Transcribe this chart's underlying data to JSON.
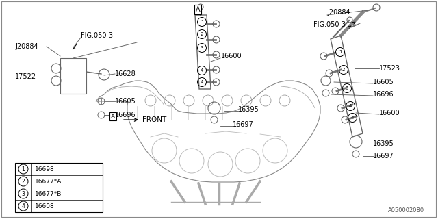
{
  "bg_color": "#ffffff",
  "text_color": "#000000",
  "fig_width": 6.4,
  "fig_height": 3.2,
  "dpi": 100,
  "bottom_right_text": "A050002080",
  "legend_entries": [
    {
      "num": "1",
      "text": "16698"
    },
    {
      "num": "2",
      "text": "16677*A"
    },
    {
      "num": "3",
      "text": "16677*B"
    },
    {
      "num": "4",
      "text": "16608"
    }
  ]
}
